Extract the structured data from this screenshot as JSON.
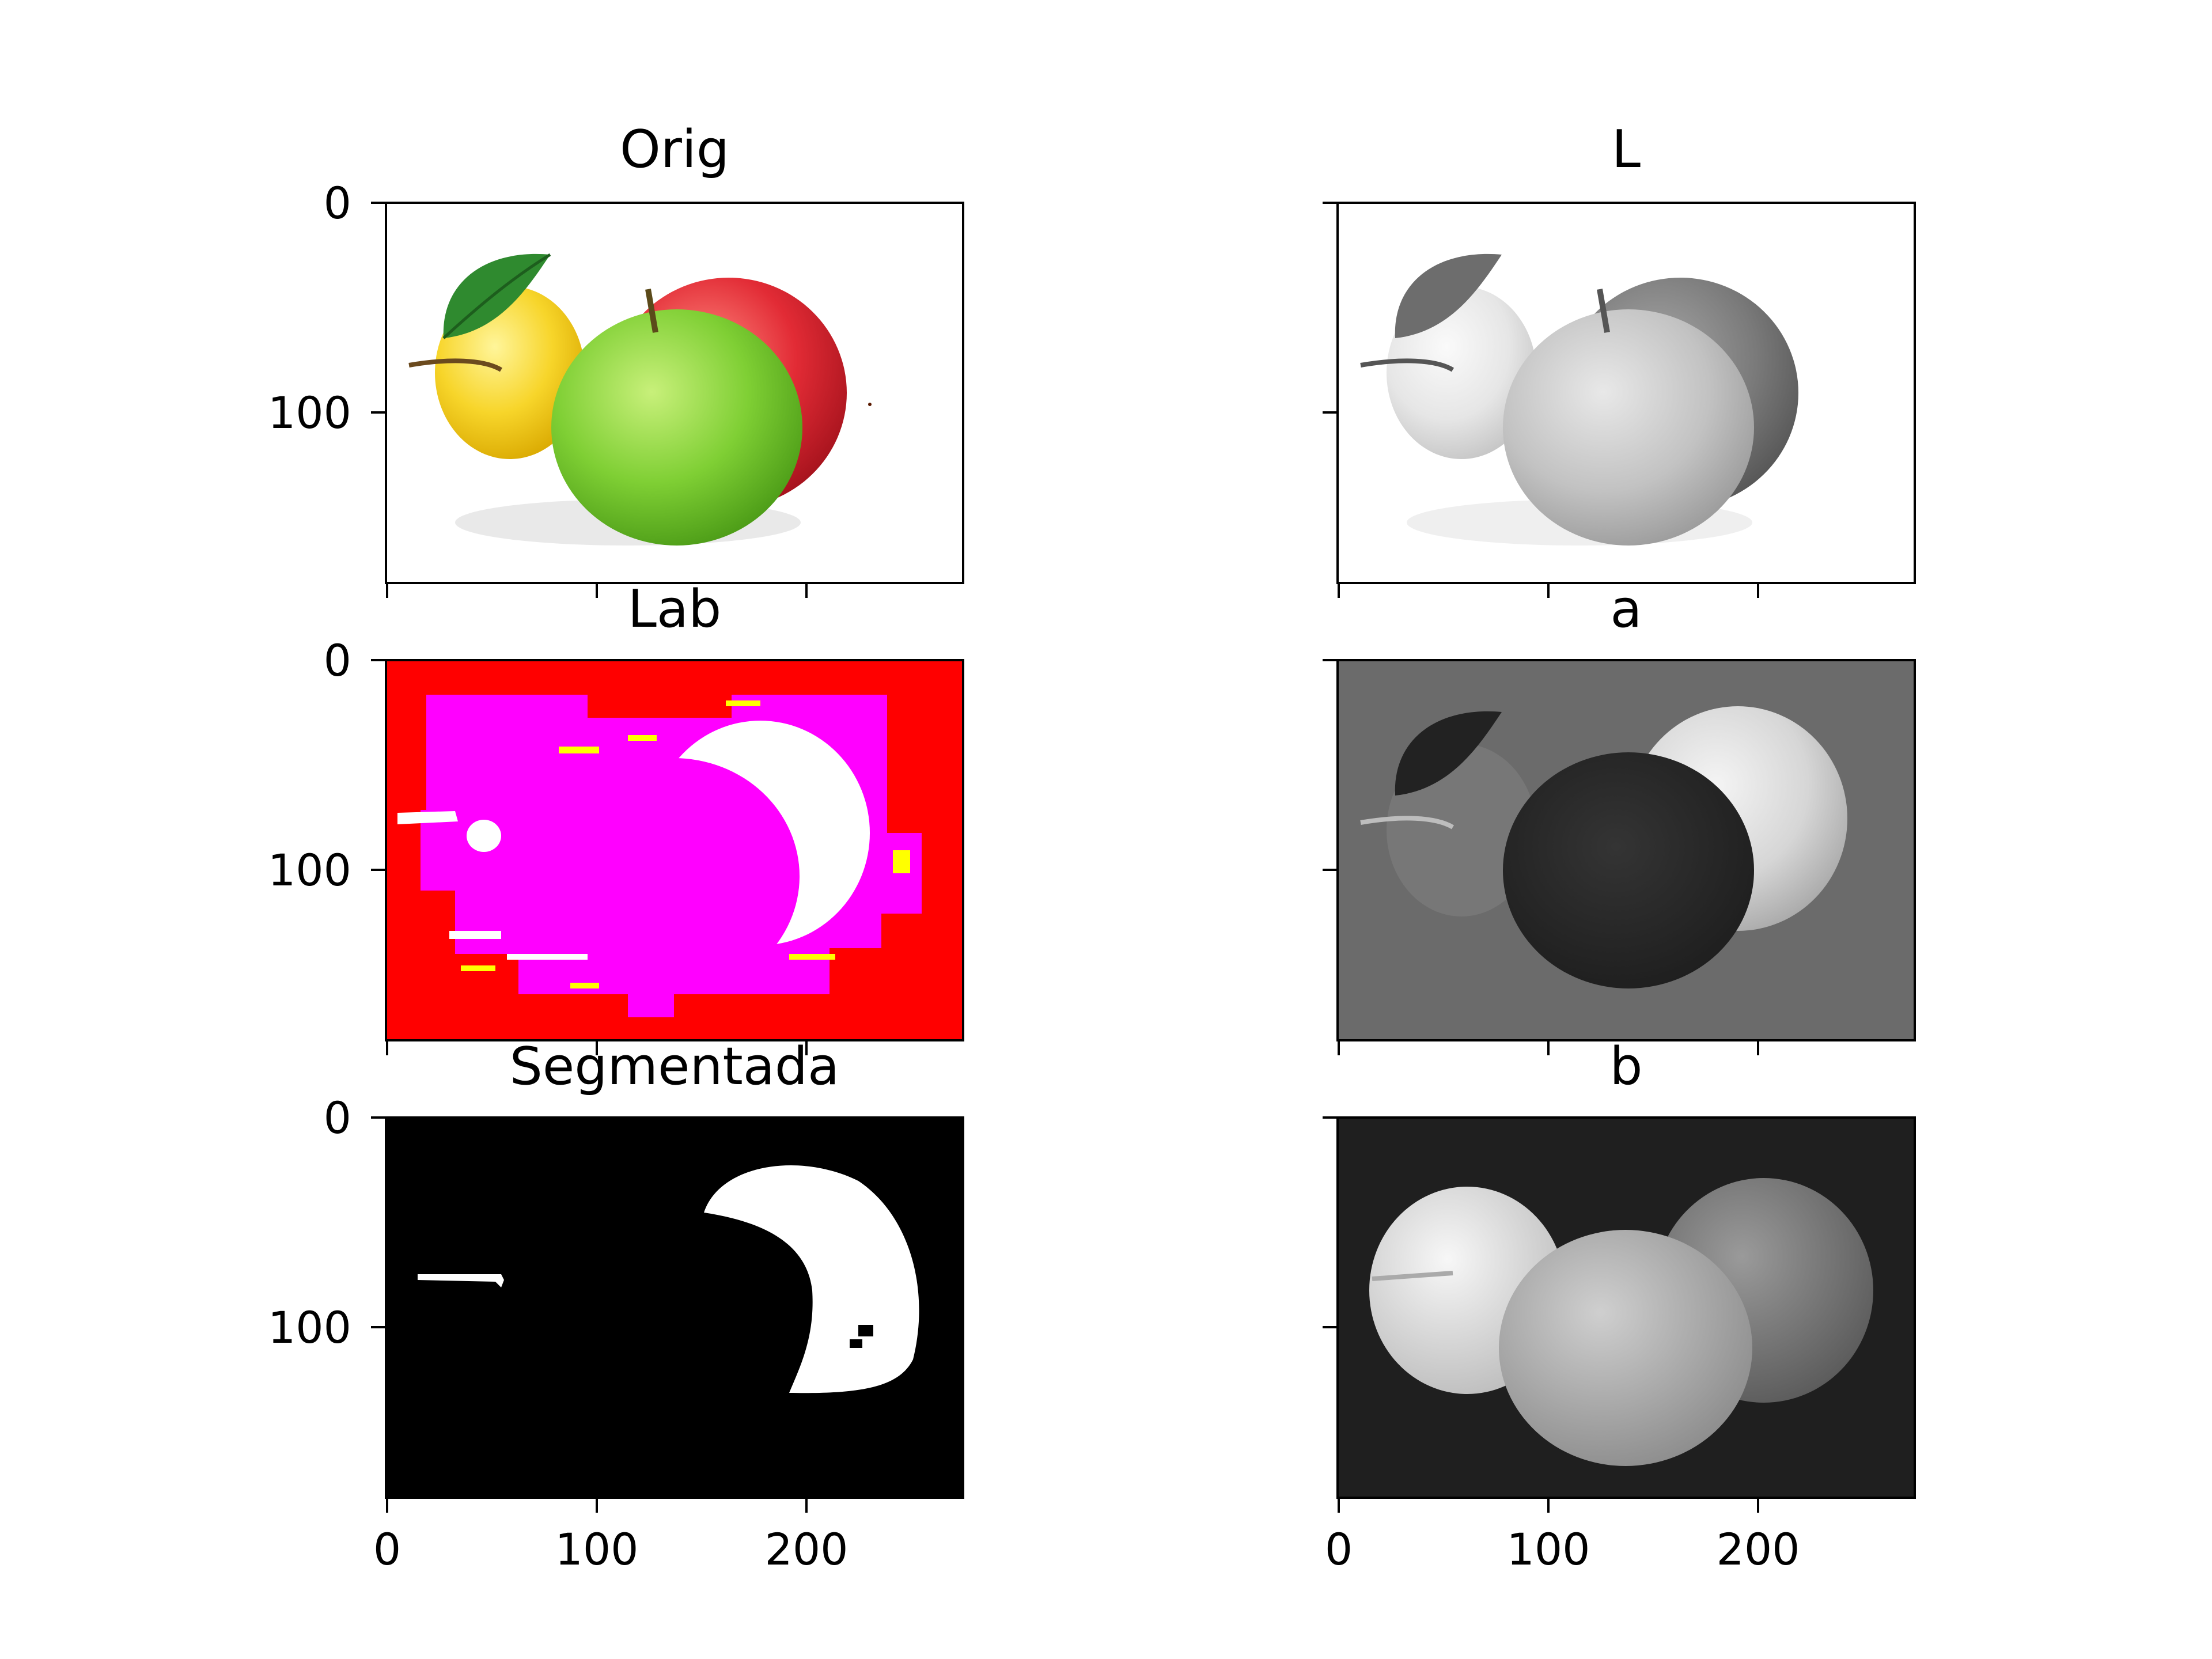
{
  "figure": {
    "panels": [
      {
        "id": "orig",
        "title": "Orig",
        "kind": "photo-color"
      },
      {
        "id": "l",
        "title": "L",
        "kind": "photo-gray"
      },
      {
        "id": "lab",
        "title": "Lab",
        "kind": "false-color-lab"
      },
      {
        "id": "a",
        "title": "a",
        "kind": "channel-a"
      },
      {
        "id": "seg",
        "title": "Segmentada",
        "kind": "binary-mask"
      },
      {
        "id": "b",
        "title": "b",
        "kind": "channel-b"
      }
    ],
    "axes": {
      "y_ticks": [
        "0",
        "100"
      ],
      "x_ticks": [
        "0",
        "100",
        "200"
      ]
    }
  }
}
